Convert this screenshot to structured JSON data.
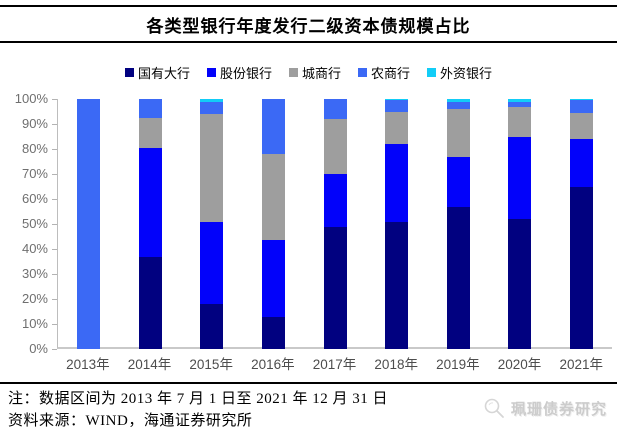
{
  "title": "各类型银行年度发行二级资本债规模占比",
  "notes": {
    "line1": "注：数据区间为 2013 年 7 月 1 日至 2021 年 12 月 31 日",
    "line2": "资料来源：WIND，海通证券研究所"
  },
  "watermark": {
    "text": "珮珊债券研究",
    "icon": "magnifier-icon"
  },
  "chart_data": {
    "type": "bar",
    "stacked": true,
    "percent_stacked": true,
    "title": "各类型银行年度发行二级资本债规模占比",
    "categories": [
      "2013年",
      "2014年",
      "2015年",
      "2016年",
      "2017年",
      "2018年",
      "2019年",
      "2020年",
      "2021年"
    ],
    "series": [
      {
        "name": "国有大行",
        "color": "#010180",
        "values": [
          0,
          37,
          18,
          13,
          49,
          51,
          57,
          52,
          65
        ]
      },
      {
        "name": "股份银行",
        "color": "#0202fa",
        "values": [
          0,
          43.5,
          33,
          30.5,
          21,
          31,
          20,
          33,
          19
        ]
      },
      {
        "name": "城商行",
        "color": "#9e9e9e",
        "values": [
          0,
          12,
          43,
          34.5,
          22,
          13,
          19,
          12,
          10.5
        ]
      },
      {
        "name": "农商行",
        "color": "#3b69f5",
        "values": [
          100,
          7.5,
          5,
          22,
          8,
          4.5,
          3,
          2,
          5
        ]
      },
      {
        "name": "外资银行",
        "color": "#12cdf7",
        "values": [
          0,
          0,
          1,
          0,
          0,
          0.5,
          1,
          1,
          0.5
        ]
      }
    ],
    "xlabel": "",
    "ylabel": "",
    "ylim": [
      0,
      100
    ],
    "yticks": [
      "0%",
      "10%",
      "20%",
      "30%",
      "40%",
      "50%",
      "60%",
      "70%",
      "80%",
      "90%",
      "100%"
    ],
    "grid": false,
    "legend_position": "top"
  }
}
